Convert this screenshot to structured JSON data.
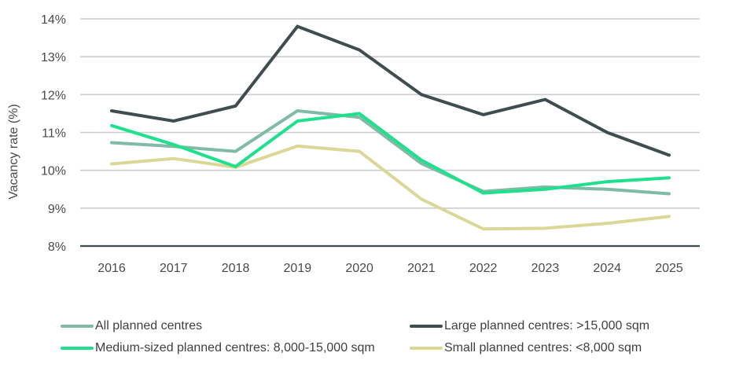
{
  "chart_data": {
    "type": "line",
    "title": "",
    "xlabel": "",
    "ylabel": "Vacancy rate (%)",
    "categories": [
      "2016",
      "2017",
      "2018",
      "2019",
      "2020",
      "2021",
      "2022",
      "2023",
      "2024",
      "2025"
    ],
    "ylim": [
      8,
      14
    ],
    "yticks": [
      8,
      9,
      10,
      11,
      12,
      13,
      14
    ],
    "ytick_labels": [
      "8%",
      "9%",
      "10%",
      "11%",
      "12%",
      "13%",
      "14%"
    ],
    "grid": true,
    "legend_position": "bottom",
    "series": [
      {
        "name": "All planned centres",
        "color": "#7fbba7",
        "values": [
          10.73,
          10.63,
          10.5,
          11.57,
          11.4,
          10.18,
          9.44,
          9.56,
          9.5,
          9.38
        ]
      },
      {
        "name": "Large planned centres: >15,000 sqm",
        "color": "#3f4d4f",
        "values": [
          11.57,
          11.3,
          11.7,
          13.8,
          13.18,
          12.0,
          11.47,
          11.87,
          11.0,
          10.4
        ]
      },
      {
        "name": "Medium-sized planned centres: 8,000-15,000 sqm",
        "color": "#1fe08c",
        "values": [
          11.18,
          10.68,
          10.1,
          11.3,
          11.5,
          10.27,
          9.4,
          9.5,
          9.7,
          9.8
        ]
      },
      {
        "name": "Small planned centres: <8,000 sqm",
        "color": "#dbd897",
        "values": [
          10.17,
          10.31,
          10.08,
          10.64,
          10.5,
          9.24,
          8.45,
          8.47,
          8.6,
          8.78
        ]
      }
    ]
  }
}
